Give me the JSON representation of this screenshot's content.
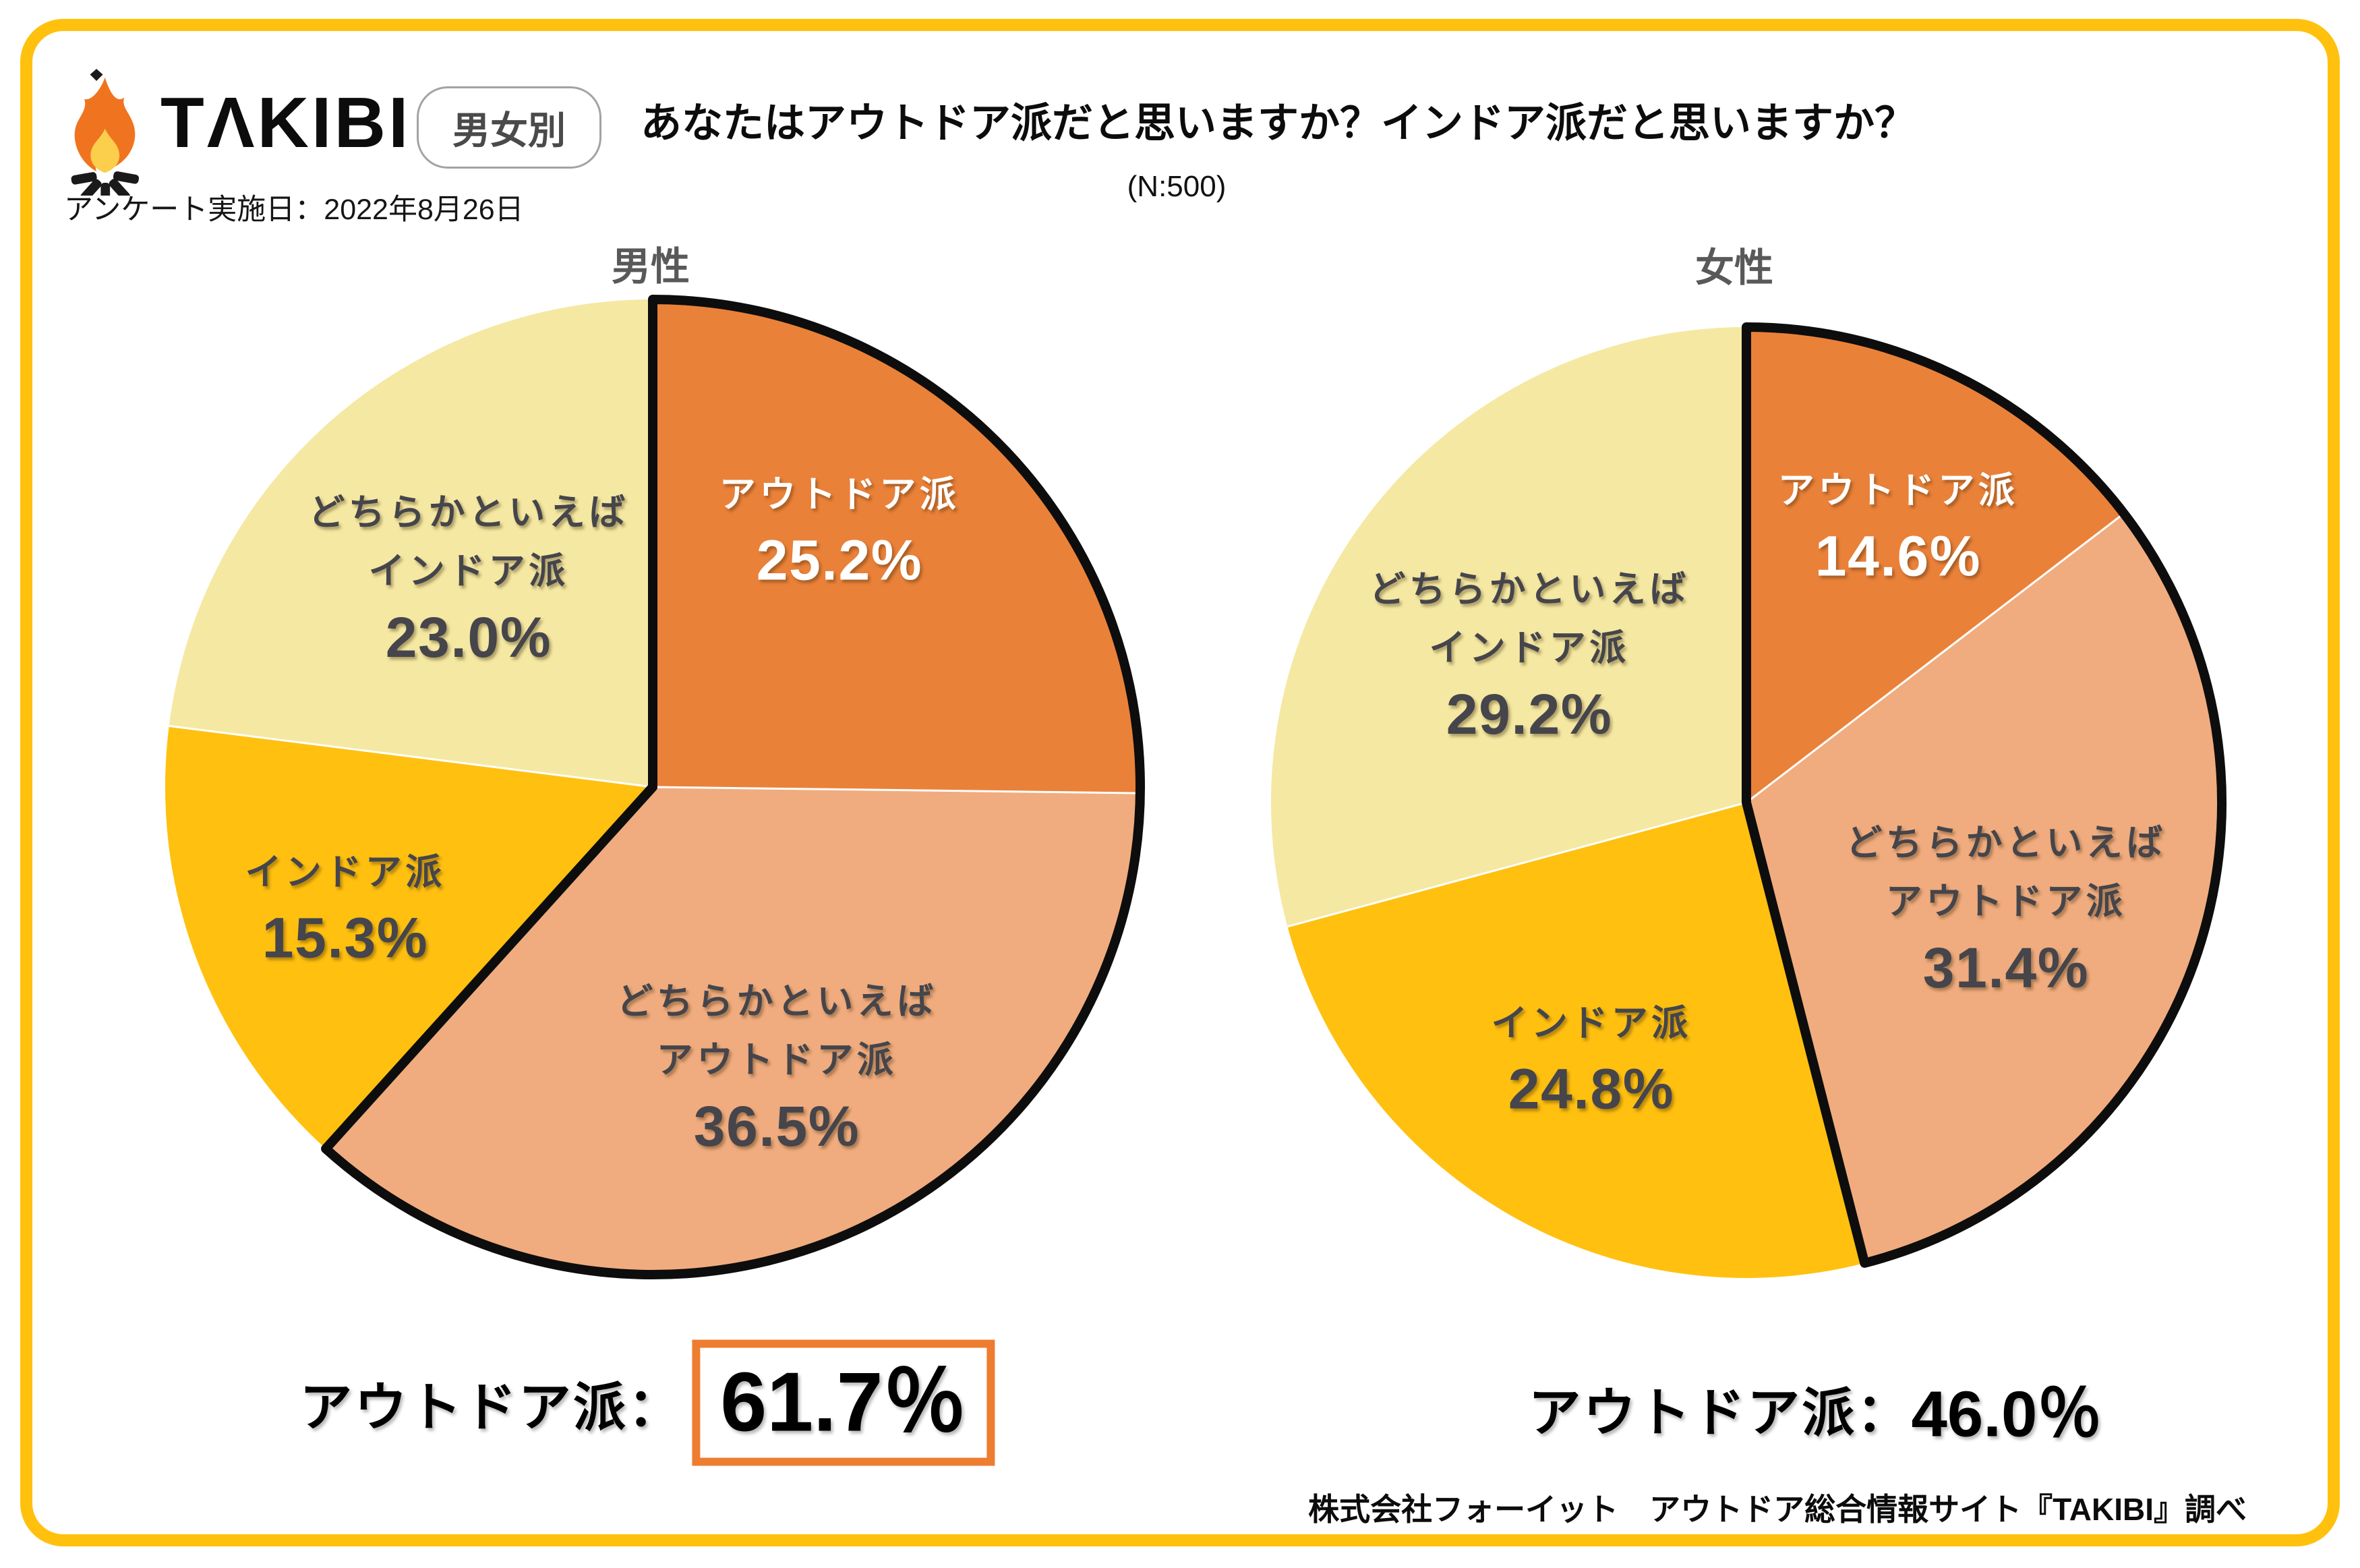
{
  "frame_color": "#FFC10D",
  "header": {
    "logo_text": "TΛKIBI",
    "badge_label": "男女別",
    "title": "あなたはアウトドア派だと思いますか？インドア派だと思いますか？",
    "sample_size": "(N:500)",
    "survey_date": "アンケート実施日：2022年8月26日"
  },
  "chart_data": [
    {
      "type": "pie",
      "title": "男性",
      "start_angle_deg": -90,
      "direction": "clockwise",
      "slices": [
        {
          "lines": [
            "アウトドア派"
          ],
          "pct": "25.2%",
          "value": 25.2,
          "color": "#EA8139",
          "text_color": "#FFFFFF"
        },
        {
          "lines": [
            "どちらかといえば",
            "アウトドア派"
          ],
          "pct": "36.5%",
          "value": 36.5,
          "color": "#F0AC7E",
          "text_color": "#45454B"
        },
        {
          "lines": [
            "インドア派"
          ],
          "pct": "15.3%",
          "value": 15.3,
          "color": "#FFC010",
          "text_color": "#45454B"
        },
        {
          "lines": [
            "どちらかといえば",
            "インドア派"
          ],
          "pct": "23.0%",
          "value": 23.0,
          "color": "#F5E8A2",
          "text_color": "#45454B"
        }
      ],
      "outline_fraction": 0.617,
      "outline_color": "#0d0d0d",
      "total": {
        "label": "アウトドア派：",
        "value": "61.7％",
        "boxed": true
      }
    },
    {
      "type": "pie",
      "title": "女性",
      "start_angle_deg": -90,
      "direction": "clockwise",
      "slices": [
        {
          "lines": [
            "アウトドア派"
          ],
          "pct": "14.6%",
          "value": 14.6,
          "color": "#EA8139",
          "text_color": "#FFFFFF"
        },
        {
          "lines": [
            "どちらかといえば",
            "アウトドア派"
          ],
          "pct": "31.4%",
          "value": 31.4,
          "color": "#F0AC7E",
          "text_color": "#45454B"
        },
        {
          "lines": [
            "インドア派"
          ],
          "pct": "24.8%",
          "value": 24.8,
          "color": "#FFC010",
          "text_color": "#45454B"
        },
        {
          "lines": [
            "どちらかといえば",
            "インドア派"
          ],
          "pct": "29.2%",
          "value": 29.2,
          "color": "#F5E8A2",
          "text_color": "#45454B"
        }
      ],
      "outline_fraction": 0.46,
      "outline_color": "#0d0d0d",
      "total": {
        "label": "アウトドア派：",
        "value": "46.0％",
        "boxed": false
      }
    }
  ],
  "footer": "株式会社フォーイット　アウトドア総合情報サイト『TAKIBI』調べ"
}
